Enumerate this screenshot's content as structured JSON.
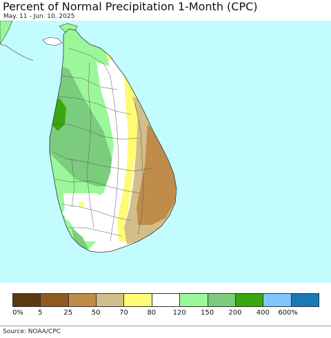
{
  "header": {
    "title": "Percent of Normal Precipitation 1-Month (CPC)",
    "subtitle": "May. 11 - Jun. 10, 2025"
  },
  "map": {
    "ocean_color": "#c2fcff",
    "region": "Sri Lanka"
  },
  "legend": {
    "colors": [
      "#5a3a10",
      "#8e5a1f",
      "#c08c4a",
      "#d2be8a",
      "#fdfc74",
      "#ffffff",
      "#9cf79a",
      "#7ccc7e",
      "#39a70d",
      "#7fc6fb",
      "#1879b6"
    ],
    "labels": [
      "0%",
      "5",
      "25",
      "50",
      "70",
      "80",
      "120",
      "150",
      "200",
      "400",
      "600%"
    ]
  },
  "footer": {
    "source": "Source: NOAA/CPC"
  }
}
